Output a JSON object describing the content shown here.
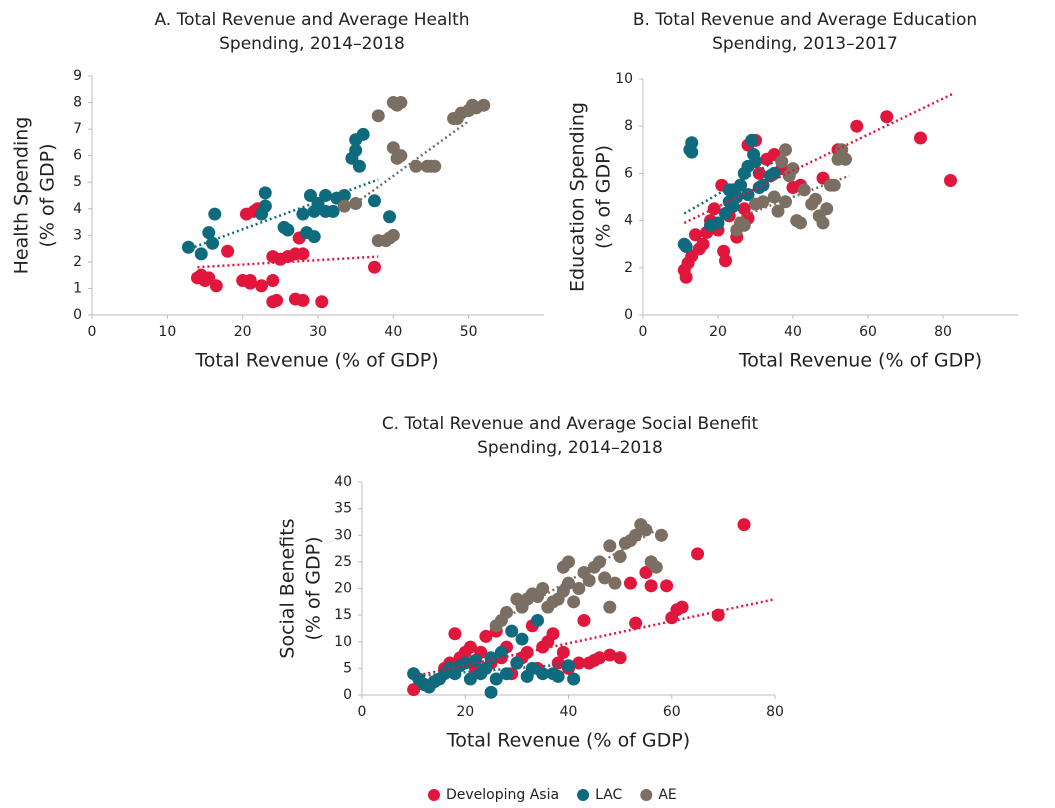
{
  "chart_data": [
    {
      "type": "scatter",
      "title": [
        "A. Total Revenue and Average Health",
        "Spending, 2014–2018"
      ],
      "x_label": "Total Revenue (% of GDP)",
      "y_label": [
        "Health Spending",
        "(% of GDP)"
      ],
      "xlim": [
        0,
        60
      ],
      "xticks": [
        0,
        10,
        20,
        30,
        40,
        50
      ],
      "ylim": [
        0,
        9
      ],
      "yticks": [
        0,
        1,
        2,
        3,
        4,
        5,
        6,
        7,
        8,
        9
      ],
      "series": [
        {
          "name": "Developing Asia",
          "color": "#e0163c",
          "x": [
            14,
            14.5,
            15,
            15.5,
            16.5,
            18,
            20,
            20.5,
            21,
            21.5,
            22,
            22.5,
            23,
            24,
            24,
            24.5,
            24,
            25,
            26,
            27,
            27.5,
            28,
            27,
            28,
            30.5,
            37.5,
            21
          ],
          "y": [
            1.4,
            1.5,
            1.3,
            1.4,
            1.1,
            2.4,
            1.3,
            3.8,
            1.2,
            3.9,
            4,
            1.1,
            4.1,
            1.3,
            0.5,
            0.55,
            2.2,
            2.1,
            2.2,
            2.3,
            2.9,
            2.3,
            0.6,
            0.55,
            0.5,
            1.8,
            1.3
          ],
          "trend": {
            "x": [
              14,
              38
            ],
            "y": [
              1.8,
              2.2
            ]
          }
        },
        {
          "name": "LAC",
          "color": "#0e6a7d",
          "x": [
            12.8,
            14.5,
            15.5,
            16,
            16.3,
            22.5,
            23,
            23,
            25.5,
            26,
            28,
            28.5,
            29,
            29.5,
            29.5,
            30,
            31,
            31,
            32.5,
            33.5,
            34.5,
            35,
            35,
            35.5,
            36,
            37.5,
            39.5,
            32
          ],
          "y": [
            2.55,
            2.3,
            3.1,
            2.7,
            3.8,
            3.8,
            4.6,
            4.1,
            3.3,
            3.2,
            3.8,
            3.1,
            4.5,
            2.95,
            3.9,
            4.2,
            4.5,
            3.9,
            4.4,
            4.5,
            5.9,
            6.6,
            6.2,
            5.6,
            6.8,
            4.3,
            3.7,
            3.9
          ],
          "trend": {
            "x": [
              13,
              38
            ],
            "y": [
              2.5,
              5.1
            ]
          }
        },
        {
          "name": "AE",
          "color": "#7b6f63",
          "x": [
            33.5,
            35,
            38,
            39,
            39.5,
            40,
            38,
            40,
            40.5,
            41,
            40,
            40.5,
            41,
            43,
            44.5,
            45,
            45.5,
            48,
            48.5,
            49,
            50,
            50.5,
            51,
            52
          ],
          "y": [
            4.1,
            4.2,
            2.8,
            2.8,
            2.9,
            3,
            7.5,
            8,
            7.9,
            8,
            6.3,
            5.9,
            6,
            5.6,
            5.6,
            5.6,
            5.6,
            7.4,
            7.4,
            7.6,
            7.7,
            7.9,
            7.8,
            7.9
          ],
          "trend": {
            "x": [
              34,
              50
            ],
            "y": [
              4.0,
              7.3
            ]
          }
        }
      ]
    },
    {
      "type": "scatter",
      "title": [
        "B. Total Revenue and Average Education",
        "Spending, 2013–2017"
      ],
      "x_label": "Total Revenue (% of GDP)",
      "y_label": [
        "Education Spending",
        "(% of GDP)"
      ],
      "xlim": [
        0,
        100
      ],
      "xticks": [
        0,
        20,
        40,
        60,
        80
      ],
      "ylim": [
        0,
        10
      ],
      "yticks": [
        0,
        2,
        4,
        6,
        8,
        10
      ],
      "series": [
        {
          "name": "Developing Asia",
          "color": "#e0163c",
          "x": [
            11,
            11.5,
            12,
            13,
            14,
            15,
            16,
            17,
            18,
            19,
            20,
            21,
            21.5,
            22,
            23,
            24,
            25,
            26,
            27,
            28,
            28,
            30,
            31,
            33,
            35,
            37,
            40,
            42,
            48,
            52,
            57,
            65,
            74,
            82
          ],
          "y": [
            1.9,
            1.6,
            2.2,
            2.5,
            3.4,
            2.8,
            3,
            3.5,
            4,
            4.5,
            3.6,
            5.5,
            2.7,
            2.3,
            4.2,
            5.3,
            3.3,
            5.5,
            4.5,
            4.1,
            7.2,
            7.4,
            6,
            6.6,
            6.8,
            6.2,
            5.4,
            5.5,
            5.8,
            7,
            8,
            8.4,
            7.5,
            5.7
          ],
          "trend": {
            "x": [
              11,
              83
            ],
            "y": [
              3.9,
              9.4
            ]
          }
        },
        {
          "name": "LAC",
          "color": "#0e6a7d",
          "x": [
            11,
            11.5,
            12.5,
            13,
            13,
            18,
            20,
            22,
            23,
            23,
            24,
            25,
            26,
            27,
            28,
            28,
            29,
            29.5,
            30,
            31,
            32,
            34,
            35
          ],
          "y": [
            3,
            2.9,
            7,
            7.3,
            6.9,
            3.8,
            3.9,
            4.3,
            5.3,
            4.8,
            4.6,
            5,
            5.5,
            6,
            6.3,
            5.1,
            7.4,
            6.8,
            6.5,
            5.4,
            5.5,
            5.9,
            6
          ],
          "trend": {
            "x": [
              11,
              35
            ],
            "y": [
              4.3,
              6.5
            ]
          }
        },
        {
          "name": "AE",
          "color": "#7b6f63",
          "x": [
            25,
            26,
            27,
            30,
            32,
            35,
            36,
            37,
            38,
            39,
            40,
            41,
            42,
            43,
            45,
            46,
            47,
            48,
            49,
            50,
            51,
            52,
            53,
            54,
            38
          ],
          "y": [
            3.6,
            3.9,
            3.8,
            4.7,
            4.8,
            5,
            4.4,
            6.5,
            4.8,
            5.9,
            6.2,
            4,
            3.9,
            5.3,
            4.7,
            4.9,
            4.2,
            3.9,
            4.5,
            5.5,
            5.5,
            6.6,
            7,
            6.6,
            7
          ],
          "trend": {
            "x": [
              25,
              55
            ],
            "y": [
              4.1,
              5.9
            ]
          }
        }
      ]
    },
    {
      "type": "scatter",
      "title": [
        "C. Total Revenue and Average Social Benefit",
        "Spending, 2014–2018"
      ],
      "x_label": "Total Revenue (% of GDP)",
      "y_label": [
        "Social Benefits",
        "(% of GDP)"
      ],
      "xlim": [
        0,
        80
      ],
      "xticks": [
        0,
        20,
        40,
        60,
        80
      ],
      "ylim": [
        0,
        40
      ],
      "yticks": [
        0,
        5,
        10,
        15,
        20,
        25,
        30,
        35,
        40
      ],
      "series": [
        {
          "name": "Developing Asia",
          "color": "#e0163c",
          "x": [
            10,
            12,
            14,
            16,
            17,
            18,
            19,
            20,
            21,
            22,
            23,
            24,
            25,
            26,
            27,
            28,
            29,
            30,
            31,
            32,
            33,
            34,
            35,
            36,
            37,
            38,
            39,
            40,
            42,
            43,
            44,
            45,
            46,
            48,
            50,
            52,
            53,
            55,
            56,
            60,
            61,
            62,
            65,
            69,
            74,
            59
          ],
          "y": [
            1,
            2,
            2.5,
            5,
            6,
            11.5,
            7,
            8,
            9,
            5,
            8,
            11,
            6,
            12,
            7,
            9,
            4,
            6,
            7,
            8,
            13,
            5,
            9,
            10,
            11.5,
            6,
            8,
            5,
            6,
            14,
            6,
            6.5,
            7,
            7.5,
            7,
            21,
            13.5,
            23,
            20.5,
            14.5,
            16,
            16.5,
            26.5,
            15,
            32,
            20.5
          ],
          "trend": {
            "x": [
              10,
              80
            ],
            "y": [
              3.5,
              18
            ]
          }
        },
        {
          "name": "LAC",
          "color": "#0e6a7d",
          "x": [
            10,
            11,
            12,
            13,
            14,
            15,
            16,
            17,
            18,
            19,
            20,
            21,
            22,
            23,
            24,
            25,
            25,
            26,
            27,
            28,
            29,
            30,
            31,
            32,
            33,
            34,
            35,
            37,
            38,
            40,
            41
          ],
          "y": [
            4,
            3,
            2,
            1.5,
            2.5,
            3,
            4,
            5,
            4,
            5.5,
            6,
            3,
            6.5,
            4,
            5,
            0.5,
            7,
            3,
            8,
            4,
            12,
            6,
            10.5,
            3.5,
            5,
            14,
            4,
            4,
            3.5,
            5.5,
            3
          ],
          "trend": {
            "x": [
              10,
              40
            ],
            "y": [
              3.5,
              5.8
            ]
          }
        },
        {
          "name": "AE",
          "color": "#7b6f63",
          "x": [
            26,
            27,
            28,
            30,
            31,
            32,
            33,
            34,
            35,
            36,
            37,
            38,
            39,
            39,
            40,
            40,
            41,
            42,
            43,
            44,
            45,
            46,
            47,
            48,
            49,
            50,
            51,
            52,
            53,
            54,
            55,
            56,
            57,
            58,
            48
          ],
          "y": [
            13,
            14,
            15.5,
            18,
            16.5,
            18,
            19,
            18.5,
            20,
            16.5,
            17.5,
            18,
            19.5,
            24,
            25,
            21,
            17.5,
            20,
            23,
            21.5,
            24,
            25,
            22,
            28,
            21,
            26,
            28.5,
            29,
            30,
            32,
            31,
            25,
            24,
            30,
            16.5
          ],
          "trend": {
            "x": [
              26,
              57
            ],
            "y": [
              13.5,
              31
            ]
          }
        }
      ]
    }
  ]
}
